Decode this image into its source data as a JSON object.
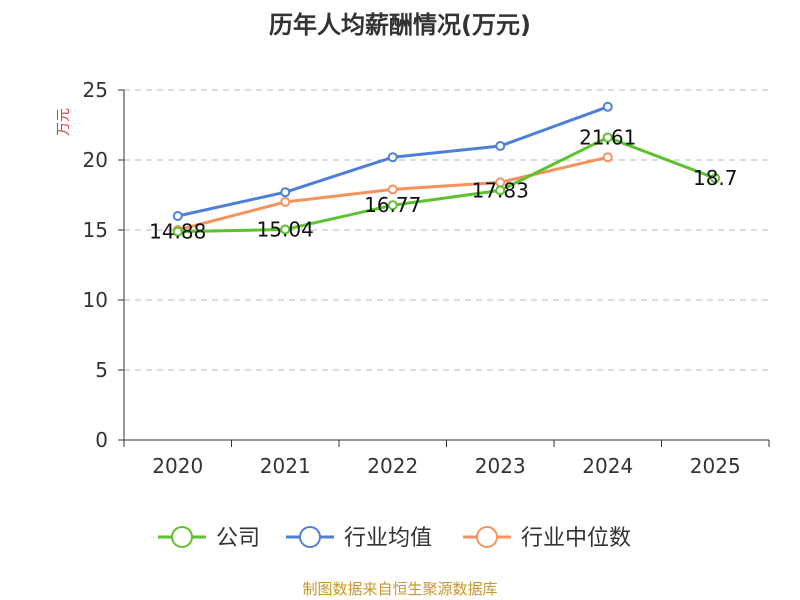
{
  "chart_data": {
    "type": "line",
    "title": "历年人均薪酬情况(万元)",
    "ylabel": "万元",
    "xlabel": "",
    "categories": [
      "2020",
      "2021",
      "2022",
      "2023",
      "2024",
      "2025"
    ],
    "yticks": [
      "0",
      "5",
      "10",
      "15",
      "20",
      "25"
    ],
    "ylim": [
      0,
      25
    ],
    "grid": true,
    "series": [
      {
        "name": "公司",
        "color": "#5cc22e",
        "values": [
          14.88,
          15.04,
          16.77,
          17.83,
          21.61,
          18.7
        ]
      },
      {
        "name": "行业均值",
        "color": "#4e7fd8",
        "values": [
          16.0,
          17.7,
          20.2,
          21.0,
          23.8,
          null
        ]
      },
      {
        "name": "行业中位数",
        "color": "#f5925e",
        "values": [
          15.0,
          17.0,
          17.9,
          18.4,
          20.2,
          null
        ]
      }
    ],
    "data_labels": [
      "14.88",
      "15.04",
      "16.77",
      "17.83",
      "21.61",
      "18.7"
    ],
    "legend": "bottom"
  },
  "source": "制图数据来自恒生聚源数据库"
}
